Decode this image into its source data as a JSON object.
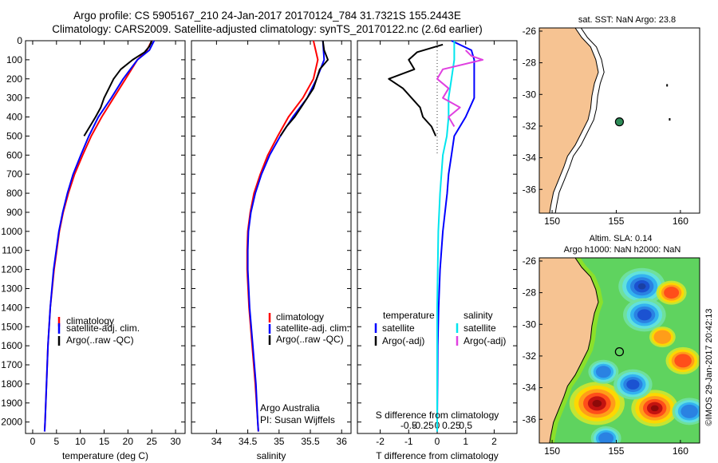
{
  "header": {
    "title_line1": "Argo profile: CS 5905167_210 24-Jan-2017 20170124_784 31.7321S 155.2443E",
    "title_line2": "Climatology: CARS2009. Satellite-adjusted climatology: synTS_20170122.nc (2.6d earlier)"
  },
  "side_text": "©IMOS 29-Jan-2017 20:42:13",
  "colors": {
    "climatology": "#ff0000",
    "satellite": "#0000ff",
    "argo": "#000000",
    "sal_satellite": "#00e5ee",
    "sal_argo": "#e040e0",
    "land": "#f6c392",
    "argo_marker": "#2e8b57"
  },
  "chart_data": [
    {
      "type": "line",
      "name": "temperature-profile",
      "xlabel": "temperature (deg C)",
      "xlim": [
        -1.5,
        32
      ],
      "ylim": [
        2060,
        0
      ],
      "xticks": [
        "0",
        "5",
        "10",
        "15",
        "20",
        "25",
        "30"
      ],
      "xtick_values": [
        0,
        5,
        10,
        15,
        20,
        25,
        30
      ],
      "yticks": [
        "0",
        "100",
        "200",
        "300",
        "400",
        "500",
        "600",
        "700",
        "800",
        "900",
        "1000",
        "1100",
        "1200",
        "1300",
        "1400",
        "1500",
        "1600",
        "1700",
        "1800",
        "1900",
        "2000"
      ],
      "ytick_values": [
        0,
        100,
        200,
        300,
        400,
        500,
        600,
        700,
        800,
        900,
        1000,
        1100,
        1200,
        1300,
        1400,
        1500,
        1600,
        1700,
        1800,
        1900,
        2000
      ],
      "legend": [
        "climatology",
        "satellite-adj. clim.",
        "Argo(..raw -QC)"
      ],
      "series": [
        {
          "name": "climatology",
          "color": "#ff0000",
          "depth": [
            0,
            50,
            100,
            200,
            300,
            400,
            500,
            600,
            700,
            800,
            900,
            1000,
            1200,
            1400,
            1600,
            1800,
            2000,
            2050
          ],
          "values": [
            25,
            24,
            22,
            19.5,
            17,
            14.5,
            12.3,
            10.5,
            8.8,
            7.5,
            6.4,
            5.6,
            4.5,
            3.7,
            3.2,
            2.9,
            2.6,
            2.5
          ]
        },
        {
          "name": "satellite-adj. clim.",
          "color": "#0000ff",
          "depth": [
            0,
            50,
            100,
            200,
            300,
            400,
            500,
            600,
            700,
            800,
            900,
            1000,
            1200,
            1400,
            1600,
            1800,
            2000,
            2050
          ],
          "values": [
            25.5,
            24.5,
            22,
            19,
            16.5,
            13.8,
            11.8,
            10.1,
            8.5,
            7.3,
            6.3,
            5.5,
            4.4,
            3.7,
            3.2,
            2.9,
            2.6,
            2.5
          ]
        },
        {
          "name": "Argo(..raw -QC)",
          "color": "#000000",
          "depth": [
            0,
            30,
            60,
            100,
            150,
            200,
            250,
            300,
            350,
            400,
            450,
            500
          ],
          "values": [
            25,
            24.5,
            23.5,
            21,
            18.5,
            17,
            16,
            15,
            14.3,
            13.2,
            12,
            10.8
          ]
        }
      ]
    },
    {
      "type": "line",
      "name": "salinity-profile",
      "xlabel": "salinity",
      "xlim": [
        33.6,
        36.15
      ],
      "ylim": [
        2060,
        0
      ],
      "xticks": [
        "34",
        "34.5",
        "35",
        "35.5",
        "36"
      ],
      "xtick_values": [
        34,
        34.5,
        35,
        35.5,
        36
      ],
      "legend": [
        "climatology",
        "satellite-adj. clim.",
        "Argo(..raw -QC)"
      ],
      "annotation": [
        "Argo Australia",
        "PI: Susan Wijffels"
      ],
      "series": [
        {
          "name": "climatology",
          "color": "#ff0000",
          "depth": [
            0,
            100,
            200,
            300,
            400,
            500,
            600,
            700,
            800,
            900,
            1000,
            1100,
            1200,
            1400,
            1600,
            1800,
            2000,
            2050
          ],
          "values": [
            35.55,
            35.62,
            35.55,
            35.38,
            35.15,
            34.98,
            34.82,
            34.7,
            34.6,
            34.54,
            34.5,
            34.49,
            34.49,
            34.52,
            34.57,
            34.62,
            34.66,
            34.67
          ]
        },
        {
          "name": "satellite-adj. clim.",
          "color": "#0000ff",
          "depth": [
            0,
            100,
            200,
            300,
            400,
            500,
            600,
            700,
            800,
            900,
            1000,
            1100,
            1200,
            1400,
            1600,
            1800,
            2000,
            2050
          ],
          "values": [
            35.7,
            35.72,
            35.6,
            35.45,
            35.22,
            35.02,
            34.85,
            34.72,
            34.62,
            34.55,
            34.51,
            34.5,
            34.5,
            34.53,
            34.58,
            34.63,
            34.66,
            34.67
          ]
        },
        {
          "name": "Argo(..raw -QC)",
          "color": "#000000",
          "depth": [
            0,
            50,
            100,
            150,
            200,
            250,
            300,
            350,
            400,
            450,
            500
          ],
          "values": [
            35.7,
            35.72,
            35.78,
            35.65,
            35.6,
            35.55,
            35.45,
            35.35,
            35.25,
            35.12,
            35.02
          ]
        }
      ]
    },
    {
      "type": "line",
      "name": "difference-profile",
      "xlabel": "T difference from climatology",
      "xlabel_top": "S difference from climatology",
      "xlim": [
        -2.8,
        2.8
      ],
      "ylim": [
        2060,
        0
      ],
      "xticks": [
        "-2",
        "-1",
        "0",
        "1",
        "2"
      ],
      "xtick_values": [
        -2,
        -1,
        0,
        1,
        2
      ],
      "sticks": [
        "-0.5",
        "-0.25",
        "0",
        "0.25",
        "0.5"
      ],
      "stick_values": [
        -0.5,
        -0.25,
        0,
        0.25,
        0.5
      ],
      "legend_titles": [
        "temperature",
        "salinity"
      ],
      "legend": [
        "satellite",
        "Argo(-adj)",
        "satellite",
        "Argo(-adj)"
      ],
      "series": [
        {
          "name": "temperature satellite",
          "color": "#0000ff",
          "depth": [
            0,
            50,
            100,
            150,
            200,
            250,
            300,
            400,
            500,
            600,
            700,
            800,
            1000,
            1200,
            1400,
            1600,
            1800,
            2000,
            2050
          ],
          "values": [
            0.5,
            1.2,
            1.3,
            1.3,
            1.3,
            1.3,
            1.3,
            1.0,
            0.6,
            0.5,
            0.4,
            0.35,
            0.2,
            0.1,
            0.05,
            0.02,
            0.01,
            0,
            0
          ]
        },
        {
          "name": "temperature Argo(-adj)",
          "color": "#000000",
          "depth": [
            20,
            60,
            100,
            150,
            200,
            250,
            300,
            350,
            400,
            450,
            500
          ],
          "values": [
            0.2,
            -0.7,
            -1.0,
            -0.8,
            -1.7,
            -1.2,
            -0.9,
            -0.6,
            -0.5,
            -0.2,
            -0.05
          ]
        },
        {
          "name": "salinity satellite",
          "color": "#00e5ee",
          "depth": [
            0,
            100,
            200,
            300,
            400,
            500,
            600,
            800,
            1000,
            1200,
            1400,
            1600,
            1800,
            2000,
            2050
          ],
          "values": [
            0.3,
            0.3,
            0.25,
            0.2,
            0.2,
            0.17,
            0.1,
            0.05,
            0.02,
            0.01,
            0,
            0,
            0,
            0,
            0
          ]
        },
        {
          "name": "salinity Argo(-adj)",
          "color": "#e040e0",
          "depth": [
            50,
            80,
            100,
            150,
            200,
            250,
            300,
            350,
            400,
            450
          ],
          "values": [
            0.5,
            0.6,
            0.8,
            0.1,
            0.0,
            0.2,
            0.1,
            0.4,
            0.2,
            0.3
          ]
        }
      ]
    },
    {
      "type": "scatter",
      "name": "sst-map",
      "title": "sat. SST: NaN Argo: 23.8",
      "xlim": [
        149,
        161.5
      ],
      "ylim": [
        -37.5,
        -25.8
      ],
      "xticks": [
        "150",
        "155",
        "160"
      ],
      "xtick_values": [
        150,
        155,
        160
      ],
      "yticks": [
        "-26",
        "-28",
        "-30",
        "-32",
        "-34",
        "-36"
      ],
      "ytick_values": [
        -26,
        -28,
        -30,
        -32,
        -34,
        -36
      ],
      "points": [
        {
          "lon": 155.2443,
          "lat": -31.7321,
          "label": "Argo"
        }
      ],
      "coastline": [
        [
          151.8,
          -25.8
        ],
        [
          152.3,
          -26.4
        ],
        [
          153.0,
          -27.0
        ],
        [
          153.4,
          -27.8
        ],
        [
          153.6,
          -28.6
        ],
        [
          153.3,
          -29.3
        ],
        [
          153.1,
          -30.1
        ],
        [
          153.0,
          -30.9
        ],
        [
          152.8,
          -31.6
        ],
        [
          152.3,
          -32.4
        ],
        [
          151.8,
          -33.2
        ],
        [
          151.2,
          -33.9
        ],
        [
          150.9,
          -34.6
        ],
        [
          150.5,
          -35.4
        ],
        [
          150.1,
          -36.2
        ],
        [
          149.9,
          -37.0
        ],
        [
          149.8,
          -37.5
        ]
      ]
    },
    {
      "type": "heatmap",
      "name": "sla-map",
      "title": "Altim. SLA: 0.14",
      "subtitle": "Argo h1000: NaN h2000: NaN",
      "xlim": [
        149,
        161.5
      ],
      "ylim": [
        -37.5,
        -25.8
      ],
      "xticks": [
        "150",
        "155",
        "160"
      ],
      "xtick_values": [
        150,
        155,
        160
      ],
      "yticks": [
        "-26",
        "-28",
        "-30",
        "-32",
        "-34",
        "-36"
      ],
      "ytick_values": [
        -26,
        -28,
        -30,
        -32,
        -34,
        -36
      ],
      "points": [
        {
          "lon": 155.2443,
          "lat": -31.7321,
          "label": "Argo"
        }
      ],
      "anomalies": [
        {
          "lon": 157.0,
          "lat": -27.6,
          "val": -0.9
        },
        {
          "lon": 157.2,
          "lat": -29.4,
          "val": -0.8
        },
        {
          "lon": 153.5,
          "lat": -35.0,
          "val": 1.1
        },
        {
          "lon": 158.0,
          "lat": -35.3,
          "val": 0.9
        },
        {
          "lon": 160.2,
          "lat": -32.3,
          "val": 0.6
        },
        {
          "lon": 159.3,
          "lat": -28.0,
          "val": 0.5
        },
        {
          "lon": 156.3,
          "lat": -33.8,
          "val": -0.7
        },
        {
          "lon": 154.0,
          "lat": -33.0,
          "val": -0.5
        },
        {
          "lon": 160.7,
          "lat": -35.5,
          "val": -0.6
        },
        {
          "lon": 154.2,
          "lat": -37.2,
          "val": -0.5
        },
        {
          "lon": 158.6,
          "lat": -30.8,
          "val": 0.4
        }
      ]
    }
  ]
}
